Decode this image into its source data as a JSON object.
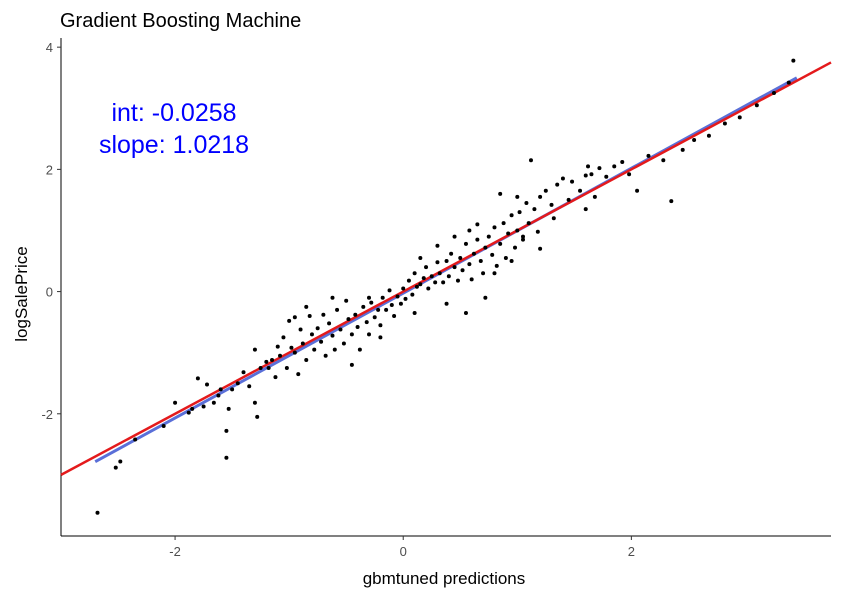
{
  "chart_data": {
    "type": "scatter",
    "title": "Gradient Boosting Machine",
    "xlabel": "gbmtuned predictions",
    "ylabel": "logSalePrice",
    "xlim": [
      -3.0,
      3.75
    ],
    "ylim": [
      -4.0,
      4.15
    ],
    "x_ticks": [
      -2,
      0,
      2
    ],
    "x_tick_labels": [
      "-2",
      "0",
      "2"
    ],
    "y_ticks": [
      -2,
      0,
      2,
      4
    ],
    "y_tick_labels": [
      "-2",
      "0",
      "2",
      "4"
    ],
    "grid": false,
    "annotations": [
      {
        "text": "int: -0.0258",
        "color": "#0000ff"
      },
      {
        "text": "slope: 1.0218",
        "color": "#0000ff"
      }
    ],
    "lines": [
      {
        "kind": "fit",
        "color": "#5a6fd8",
        "intercept": -0.0258,
        "slope": 1.0218,
        "x_range": [
          -2.7,
          3.45
        ]
      },
      {
        "kind": "identity",
        "color": "#e41a1c",
        "intercept": 0,
        "slope": 1,
        "x_range": [
          -3.0,
          3.75
        ]
      }
    ],
    "points": [
      [
        -2.68,
        -3.62
      ],
      [
        -2.52,
        -2.88
      ],
      [
        -2.48,
        -2.78
      ],
      [
        -2.35,
        -2.42
      ],
      [
        -2.1,
        -2.2
      ],
      [
        -2.0,
        -1.82
      ],
      [
        -1.88,
        -1.98
      ],
      [
        -1.85,
        -1.92
      ],
      [
        -1.8,
        -1.42
      ],
      [
        -1.75,
        -1.88
      ],
      [
        -1.72,
        -1.52
      ],
      [
        -1.66,
        -1.82
      ],
      [
        -1.62,
        -1.7
      ],
      [
        -1.6,
        -1.6
      ],
      [
        -1.55,
        -2.72
      ],
      [
        -1.55,
        -2.28
      ],
      [
        -1.53,
        -1.92
      ],
      [
        -1.5,
        -1.6
      ],
      [
        -1.45,
        -1.5
      ],
      [
        -1.4,
        -1.32
      ],
      [
        -1.35,
        -1.55
      ],
      [
        -1.3,
        -1.82
      ],
      [
        -1.28,
        -2.05
      ],
      [
        -1.25,
        -1.25
      ],
      [
        -1.2,
        -1.15
      ],
      [
        -1.18,
        -1.25
      ],
      [
        -1.15,
        -1.12
      ],
      [
        -1.1,
        -0.9
      ],
      [
        -1.08,
        -1.05
      ],
      [
        -1.05,
        -0.75
      ],
      [
        -1.02,
        -1.25
      ],
      [
        -1.0,
        -0.48
      ],
      [
        -0.98,
        -0.92
      ],
      [
        -0.95,
        -1.0
      ],
      [
        -0.92,
        -1.35
      ],
      [
        -0.9,
        -0.62
      ],
      [
        -0.88,
        -0.85
      ],
      [
        -0.85,
        -1.12
      ],
      [
        -0.82,
        -0.4
      ],
      [
        -0.8,
        -0.7
      ],
      [
        -0.78,
        -0.95
      ],
      [
        -0.75,
        -0.6
      ],
      [
        -0.72,
        -0.82
      ],
      [
        -0.7,
        -0.38
      ],
      [
        -0.68,
        -1.05
      ],
      [
        -0.65,
        -0.52
      ],
      [
        -0.62,
        -0.72
      ],
      [
        -0.6,
        -0.95
      ],
      [
        -0.58,
        -0.3
      ],
      [
        -0.55,
        -0.62
      ],
      [
        -0.52,
        -0.85
      ],
      [
        -0.5,
        -0.15
      ],
      [
        -0.48,
        -0.45
      ],
      [
        -0.45,
        -0.7
      ],
      [
        -0.42,
        -0.38
      ],
      [
        -0.4,
        -0.58
      ],
      [
        -0.38,
        -0.95
      ],
      [
        -0.35,
        -0.25
      ],
      [
        -0.32,
        -0.5
      ],
      [
        -0.3,
        -0.7
      ],
      [
        -0.28,
        -0.18
      ],
      [
        -0.25,
        -0.42
      ],
      [
        -0.22,
        -0.3
      ],
      [
        -0.2,
        -0.55
      ],
      [
        -0.18,
        -0.1
      ],
      [
        -0.15,
        -0.3
      ],
      [
        -0.12,
        0.02
      ],
      [
        -0.1,
        -0.22
      ],
      [
        -0.08,
        -0.4
      ],
      [
        -0.05,
        -0.08
      ],
      [
        -0.02,
        -0.2
      ],
      [
        0.0,
        0.05
      ],
      [
        0.02,
        -0.12
      ],
      [
        0.05,
        0.18
      ],
      [
        0.08,
        -0.05
      ],
      [
        0.1,
        0.3
      ],
      [
        0.12,
        0.08
      ],
      [
        0.15,
        0.12
      ],
      [
        0.18,
        0.22
      ],
      [
        0.2,
        0.4
      ],
      [
        0.22,
        0.05
      ],
      [
        0.25,
        0.25
      ],
      [
        0.28,
        0.15
      ],
      [
        0.3,
        0.48
      ],
      [
        0.32,
        0.3
      ],
      [
        0.35,
        0.15
      ],
      [
        0.38,
        0.5
      ],
      [
        0.4,
        0.25
      ],
      [
        0.42,
        0.62
      ],
      [
        0.45,
        0.4
      ],
      [
        0.48,
        0.18
      ],
      [
        0.5,
        0.55
      ],
      [
        0.52,
        0.35
      ],
      [
        0.55,
        0.78
      ],
      [
        0.58,
        0.45
      ],
      [
        0.6,
        0.2
      ],
      [
        0.62,
        0.62
      ],
      [
        0.65,
        0.85
      ],
      [
        0.68,
        0.5
      ],
      [
        0.7,
        0.3
      ],
      [
        0.72,
        0.72
      ],
      [
        0.75,
        0.9
      ],
      [
        0.78,
        0.6
      ],
      [
        0.8,
        1.05
      ],
      [
        0.82,
        0.42
      ],
      [
        0.85,
        0.78
      ],
      [
        0.88,
        1.12
      ],
      [
        0.9,
        0.55
      ],
      [
        0.92,
        0.95
      ],
      [
        0.95,
        1.25
      ],
      [
        0.98,
        0.72
      ],
      [
        1.0,
        1.0
      ],
      [
        1.02,
        1.3
      ],
      [
        1.05,
        0.85
      ],
      [
        1.08,
        1.45
      ],
      [
        1.1,
        1.12
      ],
      [
        1.12,
        2.15
      ],
      [
        1.15,
        1.35
      ],
      [
        1.18,
        0.98
      ],
      [
        1.2,
        1.55
      ],
      [
        1.25,
        1.65
      ],
      [
        1.3,
        1.42
      ],
      [
        1.32,
        1.2
      ],
      [
        1.35,
        1.75
      ],
      [
        1.4,
        1.85
      ],
      [
        1.45,
        1.5
      ],
      [
        1.48,
        1.8
      ],
      [
        1.55,
        1.65
      ],
      [
        1.6,
        1.35
      ],
      [
        1.62,
        2.05
      ],
      [
        1.65,
        1.92
      ],
      [
        1.68,
        1.55
      ],
      [
        1.72,
        2.02
      ],
      [
        1.78,
        1.88
      ],
      [
        1.85,
        2.05
      ],
      [
        1.92,
        2.12
      ],
      [
        1.98,
        1.92
      ],
      [
        2.05,
        1.65
      ],
      [
        2.15,
        2.22
      ],
      [
        2.28,
        2.15
      ],
      [
        2.35,
        1.48
      ],
      [
        2.45,
        2.32
      ],
      [
        2.55,
        2.48
      ],
      [
        2.68,
        2.55
      ],
      [
        2.82,
        2.75
      ],
      [
        2.95,
        2.85
      ],
      [
        3.1,
        3.05
      ],
      [
        3.25,
        3.25
      ],
      [
        3.38,
        3.42
      ],
      [
        3.42,
        3.78
      ],
      [
        -0.95,
        -0.42
      ],
      [
        -0.62,
        -0.1
      ],
      [
        -0.45,
        -1.2
      ],
      [
        -0.3,
        -0.1
      ],
      [
        0.1,
        -0.35
      ],
      [
        0.3,
        0.75
      ],
      [
        0.45,
        0.9
      ],
      [
        0.55,
        -0.35
      ],
      [
        0.65,
        1.1
      ],
      [
        0.72,
        -0.1
      ],
      [
        0.8,
        0.3
      ],
      [
        0.95,
        0.5
      ],
      [
        1.05,
        0.9
      ],
      [
        1.2,
        0.7
      ],
      [
        -1.3,
        -0.95
      ],
      [
        -1.12,
        -1.4
      ],
      [
        -0.85,
        -0.25
      ],
      [
        -0.2,
        -0.75
      ],
      [
        0.15,
        0.55
      ],
      [
        0.38,
        -0.2
      ],
      [
        0.58,
        1.0
      ],
      [
        0.85,
        1.6
      ],
      [
        1.0,
        1.55
      ],
      [
        1.6,
        1.9
      ]
    ]
  }
}
